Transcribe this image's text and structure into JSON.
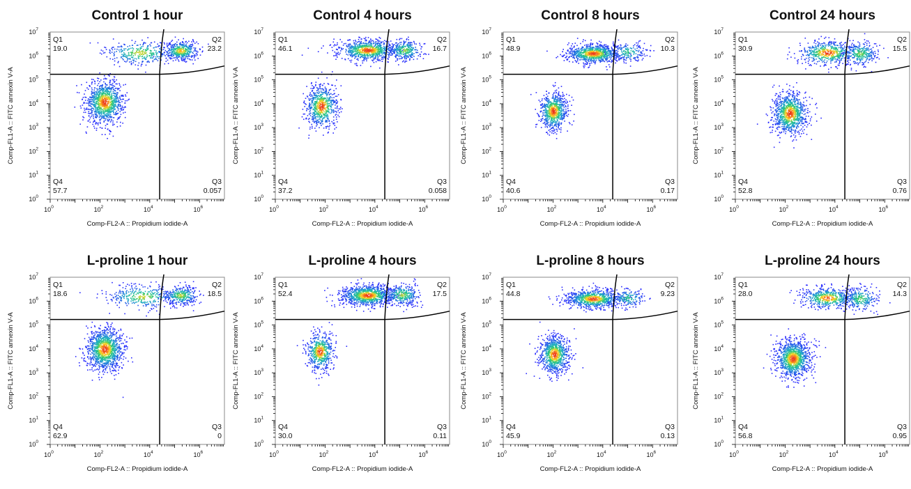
{
  "colors": {
    "low": "#2b2bff",
    "mid": "#22c5a0",
    "high": "#ffd21e",
    "peak": "#e8331f",
    "gate": "#000000",
    "frame": "#888888"
  },
  "chart_data": [
    {
      "type": "scatter",
      "title": "Control 1 hour",
      "xlabel": "Comp-FL2-A :: Propidium iodide-A",
      "ylabel": "Comp-FL1-A :: FITC annexin V-A",
      "x_scale": "log",
      "y_scale": "log",
      "xlim": [
        1,
        10000000.0
      ],
      "ylim": [
        1,
        10000000.0
      ],
      "x_ticks": [
        "10",
        "10",
        "10",
        "10"
      ],
      "x_tick_exponents": [
        "0",
        "2",
        "4",
        "6"
      ],
      "y_ticks": [
        "10",
        "10",
        "10",
        "10",
        "10",
        "10",
        "10",
        "10"
      ],
      "y_tick_exponents": [
        "0",
        "1",
        "2",
        "3",
        "4",
        "5",
        "6",
        "7"
      ],
      "gate_x": 25000,
      "gate_y": 170000,
      "quadrants": [
        {
          "name": "Q1",
          "value": "19.0"
        },
        {
          "name": "Q2",
          "value": "23.2"
        },
        {
          "name": "Q3",
          "value": "0.057"
        },
        {
          "name": "Q4",
          "value": "57.7"
        }
      ],
      "populations": [
        {
          "x": 150,
          "y": 12000,
          "sx": 0.38,
          "sy": 0.45,
          "weight": 57.7
        },
        {
          "x": 4000,
          "y": 1400000,
          "sx": 0.75,
          "sy": 0.25,
          "weight": 19.0
        },
        {
          "x": 170000,
          "y": 1700000,
          "sx": 0.35,
          "sy": 0.2,
          "weight": 23.2
        }
      ]
    },
    {
      "type": "scatter",
      "title": "Control 4 hours",
      "xlabel": "Comp-FL2-A :: Propidium iodide-A",
      "ylabel": "Comp-FL1-A :: FITC annexin V-A",
      "x_scale": "log",
      "y_scale": "log",
      "xlim": [
        1,
        10000000.0
      ],
      "ylim": [
        1,
        10000000.0
      ],
      "x_ticks": [
        "10",
        "10",
        "10",
        "10"
      ],
      "x_tick_exponents": [
        "0",
        "2",
        "4",
        "6"
      ],
      "y_ticks": [
        "10",
        "10",
        "10",
        "10",
        "10",
        "10",
        "10",
        "10"
      ],
      "y_tick_exponents": [
        "0",
        "1",
        "2",
        "3",
        "4",
        "5",
        "6",
        "7"
      ],
      "gate_x": 25000,
      "gate_y": 170000,
      "quadrants": [
        {
          "name": "Q1",
          "value": "46.1"
        },
        {
          "name": "Q2",
          "value": "16.7"
        },
        {
          "name": "Q3",
          "value": "0.058"
        },
        {
          "name": "Q4",
          "value": "37.2"
        }
      ],
      "populations": [
        {
          "x": 70,
          "y": 8000,
          "sx": 0.32,
          "sy": 0.45,
          "weight": 37.2
        },
        {
          "x": 5000,
          "y": 1800000,
          "sx": 0.6,
          "sy": 0.22,
          "weight": 46.1
        },
        {
          "x": 150000,
          "y": 1800000,
          "sx": 0.35,
          "sy": 0.22,
          "weight": 16.7
        }
      ]
    },
    {
      "type": "scatter",
      "title": "Control 8 hours",
      "xlabel": "Comp-FL2-A :: Propidium iodide-A",
      "ylabel": "Comp-FL1-A :: FITC annexin V-A",
      "x_scale": "log",
      "y_scale": "log",
      "xlim": [
        1,
        10000000.0
      ],
      "ylim": [
        1,
        10000000.0
      ],
      "x_ticks": [
        "10",
        "10",
        "10",
        "10"
      ],
      "x_tick_exponents": [
        "0",
        "2",
        "4",
        "6"
      ],
      "y_ticks": [
        "10",
        "10",
        "10",
        "10",
        "10",
        "10",
        "10",
        "10"
      ],
      "y_tick_exponents": [
        "0",
        "1",
        "2",
        "3",
        "4",
        "5",
        "6",
        "7"
      ],
      "gate_x": 25000,
      "gate_y": 170000,
      "quadrants": [
        {
          "name": "Q1",
          "value": "48.9"
        },
        {
          "name": "Q2",
          "value": "10.3"
        },
        {
          "name": "Q3",
          "value": "0.17"
        },
        {
          "name": "Q4",
          "value": "40.6"
        }
      ],
      "populations": [
        {
          "x": 100,
          "y": 5000,
          "sx": 0.28,
          "sy": 0.4,
          "weight": 40.6
        },
        {
          "x": 4000,
          "y": 1300000,
          "sx": 0.55,
          "sy": 0.2,
          "weight": 48.9
        },
        {
          "x": 100000,
          "y": 1500000,
          "sx": 0.35,
          "sy": 0.2,
          "weight": 10.3
        }
      ]
    },
    {
      "type": "scatter",
      "title": "Control 24 hours",
      "xlabel": "Comp-FL2-A :: Propidium iodide-A",
      "ylabel": "Comp-FL1-A :: FITC annexin V-A",
      "x_scale": "log",
      "y_scale": "log",
      "xlim": [
        1,
        10000000.0
      ],
      "ylim": [
        1,
        10000000.0
      ],
      "x_ticks": [
        "10",
        "10",
        "10",
        "10"
      ],
      "x_tick_exponents": [
        "0",
        "2",
        "4",
        "6"
      ],
      "y_ticks": [
        "10",
        "10",
        "10",
        "10",
        "10",
        "10",
        "10",
        "10"
      ],
      "y_tick_exponents": [
        "0",
        "1",
        "2",
        "3",
        "4",
        "5",
        "6",
        "7"
      ],
      "gate_x": 25000,
      "gate_y": 170000,
      "quadrants": [
        {
          "name": "Q1",
          "value": "30.9"
        },
        {
          "name": "Q2",
          "value": "15.5"
        },
        {
          "name": "Q3",
          "value": "0.76"
        },
        {
          "name": "Q4",
          "value": "52.8"
        }
      ],
      "populations": [
        {
          "x": 150,
          "y": 4000,
          "sx": 0.35,
          "sy": 0.45,
          "weight": 52.8
        },
        {
          "x": 5000,
          "y": 1400000,
          "sx": 0.6,
          "sy": 0.25,
          "weight": 30.9
        },
        {
          "x": 100000,
          "y": 1300000,
          "sx": 0.35,
          "sy": 0.25,
          "weight": 15.5
        }
      ]
    },
    {
      "type": "scatter",
      "title": "L-proline 1 hour",
      "xlabel": "Comp-FL2-A :: Propidium iodide-A",
      "ylabel": "Comp-FL1-A :: FITC annexin V-A",
      "x_scale": "log",
      "y_scale": "log",
      "xlim": [
        1,
        10000000.0
      ],
      "ylim": [
        1,
        10000000.0
      ],
      "x_ticks": [
        "10",
        "10",
        "10",
        "10"
      ],
      "x_tick_exponents": [
        "0",
        "2",
        "4",
        "6"
      ],
      "y_ticks": [
        "10",
        "10",
        "10",
        "10",
        "10",
        "10",
        "10",
        "10"
      ],
      "y_tick_exponents": [
        "0",
        "1",
        "2",
        "3",
        "4",
        "5",
        "6",
        "7"
      ],
      "gate_x": 25000,
      "gate_y": 170000,
      "quadrants": [
        {
          "name": "Q1",
          "value": "18.6"
        },
        {
          "name": "Q2",
          "value": "18.5"
        },
        {
          "name": "Q3",
          "value": "0"
        },
        {
          "name": "Q4",
          "value": "62.9"
        }
      ],
      "populations": [
        {
          "x": 150,
          "y": 10000,
          "sx": 0.38,
          "sy": 0.45,
          "weight": 62.9
        },
        {
          "x": 5000,
          "y": 1600000,
          "sx": 0.75,
          "sy": 0.25,
          "weight": 18.6
        },
        {
          "x": 170000,
          "y": 1800000,
          "sx": 0.35,
          "sy": 0.2,
          "weight": 18.5
        }
      ]
    },
    {
      "type": "scatter",
      "title": "L-proline 4 hours",
      "xlabel": "Comp-FL2-A :: Propidium iodide-A",
      "ylabel": "Comp-FL1-A :: FITC annexin V-A",
      "x_scale": "log",
      "y_scale": "log",
      "xlim": [
        1,
        10000000.0
      ],
      "ylim": [
        1,
        10000000.0
      ],
      "x_ticks": [
        "10",
        "10",
        "10",
        "10"
      ],
      "x_tick_exponents": [
        "0",
        "2",
        "4",
        "6"
      ],
      "y_ticks": [
        "10",
        "10",
        "10",
        "10",
        "10",
        "10",
        "10",
        "10"
      ],
      "y_tick_exponents": [
        "0",
        "1",
        "2",
        "3",
        "4",
        "5",
        "6",
        "7"
      ],
      "gate_x": 25000,
      "gate_y": 170000,
      "quadrants": [
        {
          "name": "Q1",
          "value": "52.4"
        },
        {
          "name": "Q2",
          "value": "17.5"
        },
        {
          "name": "Q3",
          "value": "0.11"
        },
        {
          "name": "Q4",
          "value": "30.0"
        }
      ],
      "populations": [
        {
          "x": 60,
          "y": 8000,
          "sx": 0.28,
          "sy": 0.4,
          "weight": 30.0
        },
        {
          "x": 5000,
          "y": 1800000,
          "sx": 0.55,
          "sy": 0.22,
          "weight": 52.4
        },
        {
          "x": 120000,
          "y": 1900000,
          "sx": 0.35,
          "sy": 0.22,
          "weight": 17.5
        }
      ]
    },
    {
      "type": "scatter",
      "title": "L-proline 8 hours",
      "xlabel": "Comp-FL2-A :: Propidium iodide-A",
      "ylabel": "Comp-FL1-A :: FITC annexin V-A",
      "x_scale": "log",
      "y_scale": "log",
      "xlim": [
        1,
        10000000.0
      ],
      "ylim": [
        1,
        10000000.0
      ],
      "x_ticks": [
        "10",
        "10",
        "10",
        "10"
      ],
      "x_tick_exponents": [
        "0",
        "2",
        "4",
        "6"
      ],
      "y_ticks": [
        "10",
        "10",
        "10",
        "10",
        "10",
        "10",
        "10",
        "10"
      ],
      "y_tick_exponents": [
        "0",
        "1",
        "2",
        "3",
        "4",
        "5",
        "6",
        "7"
      ],
      "gate_x": 25000,
      "gate_y": 170000,
      "quadrants": [
        {
          "name": "Q1",
          "value": "44.8"
        },
        {
          "name": "Q2",
          "value": "9.23"
        },
        {
          "name": "Q3",
          "value": "0.13"
        },
        {
          "name": "Q4",
          "value": "45.9"
        }
      ],
      "populations": [
        {
          "x": 110,
          "y": 6000,
          "sx": 0.3,
          "sy": 0.4,
          "weight": 45.9
        },
        {
          "x": 4000,
          "y": 1300000,
          "sx": 0.55,
          "sy": 0.2,
          "weight": 44.8
        },
        {
          "x": 100000,
          "y": 1400000,
          "sx": 0.35,
          "sy": 0.2,
          "weight": 9.23
        }
      ]
    },
    {
      "type": "scatter",
      "title": "L-proline 24 hours",
      "xlabel": "Comp-FL2-A :: Propidium iodide-A",
      "ylabel": "Comp-FL1-A :: FITC annexin V-A",
      "x_scale": "log",
      "y_scale": "log",
      "xlim": [
        1,
        10000000.0
      ],
      "ylim": [
        1,
        10000000.0
      ],
      "x_ticks": [
        "10",
        "10",
        "10",
        "10"
      ],
      "x_tick_exponents": [
        "0",
        "2",
        "4",
        "6"
      ],
      "y_ticks": [
        "10",
        "10",
        "10",
        "10",
        "10",
        "10",
        "10",
        "10"
      ],
      "y_tick_exponents": [
        "0",
        "1",
        "2",
        "3",
        "4",
        "5",
        "6",
        "7"
      ],
      "gate_x": 25000,
      "gate_y": 170000,
      "quadrants": [
        {
          "name": "Q1",
          "value": "28.0"
        },
        {
          "name": "Q2",
          "value": "14.3"
        },
        {
          "name": "Q3",
          "value": "0.95"
        },
        {
          "name": "Q4",
          "value": "56.8"
        }
      ],
      "populations": [
        {
          "x": 200,
          "y": 4000,
          "sx": 0.35,
          "sy": 0.4,
          "weight": 56.8
        },
        {
          "x": 5000,
          "y": 1400000,
          "sx": 0.55,
          "sy": 0.22,
          "weight": 28.0
        },
        {
          "x": 100000,
          "y": 1300000,
          "sx": 0.35,
          "sy": 0.25,
          "weight": 14.3
        }
      ]
    }
  ]
}
